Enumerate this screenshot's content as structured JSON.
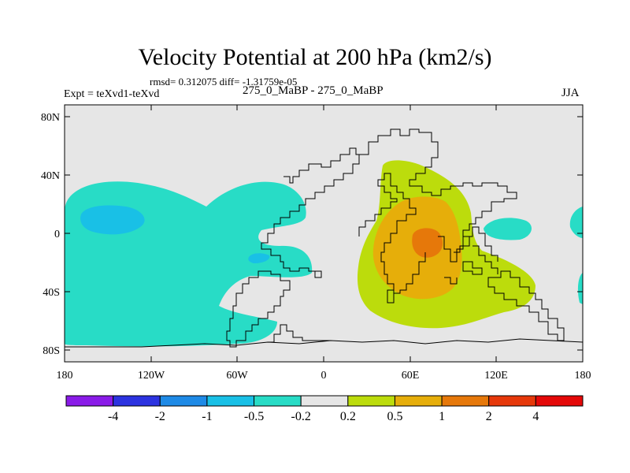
{
  "title": "Velocity Potential at 200 hPa (km2/s)",
  "stats_line": "rmsd= 0.312075 diff= -1.31759e-05",
  "experiment_label": "Expt = teXvd1-teXvd",
  "experiment_names": "275_0_MaBP - 275_0_MaBP",
  "season": "JJA",
  "latitude_ticks": [
    "80N",
    "40N",
    "0",
    "40S",
    "80S"
  ],
  "longitude_ticks": [
    "180",
    "120W",
    "60W",
    "0",
    "60E",
    "120E",
    "180"
  ],
  "colorbar": {
    "tick_labels": [
      "-4",
      "-2",
      "-1",
      "-0.5",
      "-0.2",
      "0.2",
      "0.5",
      "1",
      "2",
      "4"
    ],
    "colors": [
      "#8a1be8",
      "#2c33e0",
      "#1e8ae6",
      "#19c0e6",
      "#28dcc6",
      "#e6e6e6",
      "#bcdc0c",
      "#e6ae0a",
      "#e6780a",
      "#e6380a",
      "#e40808"
    ]
  },
  "colors": {
    "background_field": "#e6e6e6",
    "contour_negative_low": "#28dcc6",
    "contour_negative_mid": "#19c0e6",
    "contour_negative_high": "#1e8ae6",
    "contour_positive_low": "#bcdc0c",
    "contour_positive_mid": "#e6ae0a",
    "contour_positive_high": "#e6780a"
  }
}
